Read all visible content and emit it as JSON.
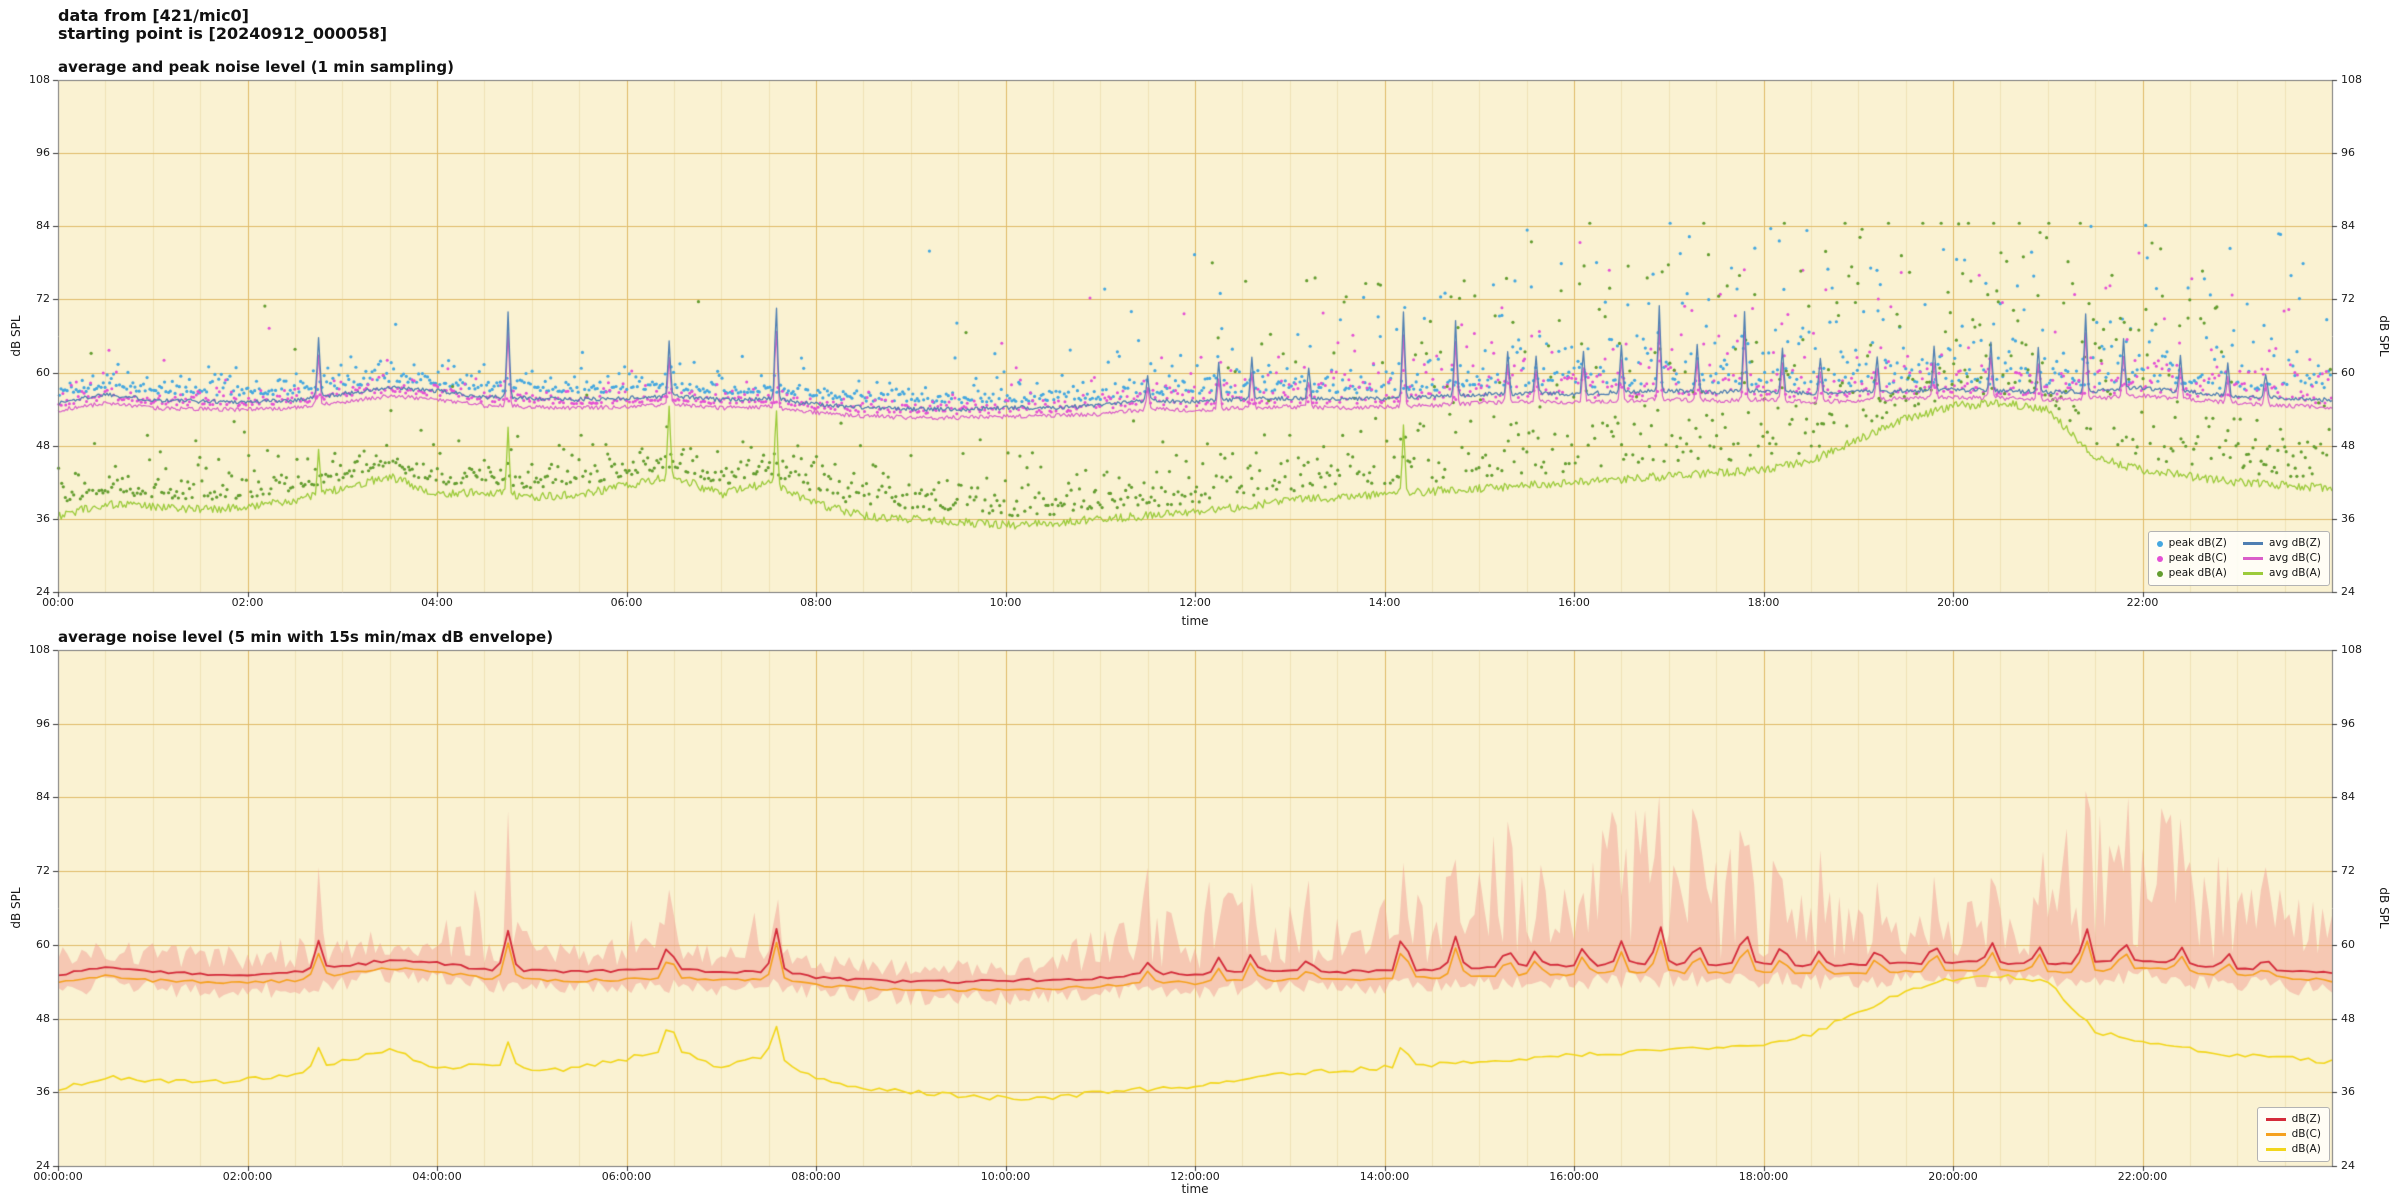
{
  "page": {
    "header_line1": "data from [421/mic0]",
    "header_line2": "starting point is [20240912_000058]",
    "plot_bg": "#faf2d2",
    "grid_major": "#e0bb68",
    "grid_minor": "#f0e2b6",
    "frame_color": "#777777",
    "tick_color": "#333333"
  },
  "chart_data": [
    {
      "type": "line+scatter",
      "title": "average and peak noise level (1 min sampling)",
      "xlabel": "time",
      "ylabel": "dB SPL",
      "ylim": [
        24,
        108
      ],
      "yticks": [
        24,
        36,
        48,
        60,
        72,
        84,
        96,
        108
      ],
      "xlim_hours": [
        0,
        24
      ],
      "xtick_hours": [
        0,
        2,
        4,
        6,
        8,
        10,
        12,
        14,
        16,
        18,
        20,
        22
      ],
      "xtick_labels": [
        "00:00",
        "02:00",
        "04:00",
        "06:00",
        "08:00",
        "10:00",
        "12:00",
        "14:00",
        "16:00",
        "18:00",
        "20:00",
        "22:00"
      ],
      "anchor_step_hours": 0.5,
      "line_step": 0.0166667,
      "spike_width": 0.02,
      "seed": 1337,
      "spikes": {
        "zc": [
          [
            2.75,
            10
          ],
          [
            4.75,
            14
          ],
          [
            6.45,
            9
          ],
          [
            7.58,
            15
          ],
          [
            11.5,
            4
          ],
          [
            12.25,
            6
          ],
          [
            12.6,
            7
          ],
          [
            13.2,
            5
          ],
          [
            14.2,
            14
          ],
          [
            14.75,
            12
          ],
          [
            15.3,
            7
          ],
          [
            15.6,
            6
          ],
          [
            16.1,
            7
          ],
          [
            16.5,
            8
          ],
          [
            16.9,
            14
          ],
          [
            17.3,
            8
          ],
          [
            17.8,
            13
          ],
          [
            18.2,
            7
          ],
          [
            18.6,
            6
          ],
          [
            19.2,
            6
          ],
          [
            19.8,
            7
          ],
          [
            20.4,
            8
          ],
          [
            20.9,
            7
          ],
          [
            21.4,
            13
          ],
          [
            21.8,
            8
          ],
          [
            22.4,
            6
          ],
          [
            22.9,
            5
          ],
          [
            23.3,
            4
          ]
        ],
        "a": [
          [
            2.75,
            8
          ],
          [
            4.75,
            11
          ],
          [
            6.45,
            12
          ],
          [
            7.58,
            13
          ],
          [
            14.2,
            11
          ]
        ]
      },
      "series": [
        {
          "name": "avg dB(Z)",
          "color": "#4f7fb2",
          "width": 1.3,
          "jitter": 0.35,
          "spikes": "zc",
          "spike_scale": 1.0,
          "anchors": [
            55.0,
            56.5,
            55.5,
            55.3,
            55.2,
            55.5,
            56.5,
            57.5,
            57.0,
            56.0,
            55.8,
            55.6,
            55.8,
            56.2,
            55.5,
            55.8,
            54.8,
            54.3,
            54.0,
            54.0,
            54.2,
            54.3,
            54.6,
            55.5,
            55.2,
            55.6,
            55.8,
            55.6,
            55.8,
            56.0,
            56.4,
            56.6,
            56.5,
            56.8,
            57.0,
            56.8,
            57.0,
            56.6,
            56.8,
            57.0,
            57.2,
            57.0,
            56.8,
            57.0,
            57.5,
            56.8,
            56.2,
            55.8,
            55.5
          ]
        },
        {
          "name": "avg dB(C)",
          "color": "#da5ec9",
          "width": 1.2,
          "jitter": 0.35,
          "spikes": "zc",
          "spike_scale": 0.85,
          "anchors": [
            53.8,
            55.0,
            54.2,
            54.0,
            53.9,
            54.2,
            55.2,
            56.2,
            55.6,
            54.6,
            54.4,
            54.2,
            54.4,
            54.8,
            54.2,
            54.4,
            53.4,
            52.9,
            52.6,
            52.6,
            52.8,
            52.9,
            53.2,
            54.0,
            53.8,
            54.2,
            54.4,
            54.2,
            54.4,
            54.6,
            55.0,
            55.2,
            55.1,
            55.4,
            55.6,
            55.4,
            55.6,
            55.2,
            55.4,
            55.8,
            56.0,
            55.8,
            55.6,
            55.8,
            56.2,
            55.6,
            55.0,
            54.6,
            54.2
          ]
        },
        {
          "name": "avg dB(A)",
          "color": "#9ccb3b",
          "width": 1.3,
          "jitter": 0.7,
          "spikes": "a",
          "spike_scale": 1.0,
          "anchors": [
            36.5,
            38.5,
            38.0,
            37.5,
            38.0,
            39.0,
            41.0,
            43.0,
            40.0,
            40.5,
            39.5,
            40.0,
            41.5,
            43.0,
            40.0,
            42.0,
            38.5,
            36.5,
            36.0,
            35.5,
            35.0,
            35.2,
            36.0,
            36.5,
            37.0,
            38.0,
            39.0,
            39.5,
            40.0,
            40.5,
            41.0,
            41.5,
            42.0,
            42.5,
            43.0,
            43.5,
            44.0,
            45.5,
            49.0,
            52.5,
            54.5,
            55.0,
            54.0,
            46.0,
            44.0,
            43.0,
            42.0,
            41.5,
            41.0
          ]
        }
      ],
      "scatter": [
        {
          "name": "peak dB(Z)",
          "color": "#44a7e0",
          "ref": 0,
          "radius": 1.6,
          "base_offset": 1.0,
          "tail_k": [
            [
              0,
              1.2
            ],
            [
              11,
              2.2
            ],
            [
              14,
              3.2
            ]
          ],
          "extra_prob": [
            [
              0,
              0.008
            ],
            [
              11,
              0.06
            ],
            [
              14,
              0.12
            ]
          ],
          "extra_amp": [
            6,
            24
          ]
        },
        {
          "name": "peak dB(C)",
          "color": "#e44fd5",
          "ref": 1,
          "radius": 1.5,
          "base_offset": 0.6,
          "tail_k": [
            [
              0,
              1.0
            ],
            [
              11,
              1.8
            ],
            [
              14,
              2.6
            ]
          ],
          "extra_prob": [
            [
              0,
              0.006
            ],
            [
              11,
              0.04
            ],
            [
              14,
              0.08
            ]
          ],
          "extra_amp": [
            5,
            20
          ]
        },
        {
          "name": "peak dB(A)",
          "color": "#639d2f",
          "ref": 2,
          "radius": 1.6,
          "base_offset": 1.5,
          "tail_k": [
            [
              0,
              2.0
            ],
            [
              8,
              3.0
            ],
            [
              12,
              5.0
            ],
            [
              14,
              7.0
            ],
            [
              23,
              4.0
            ]
          ],
          "extra_prob": [
            [
              0,
              0.01
            ],
            [
              12,
              0.18
            ],
            [
              14,
              0.25
            ],
            [
              23,
              0.08
            ]
          ],
          "extra_amp": [
            12,
            30
          ]
        }
      ],
      "legend_position": "lower right"
    },
    {
      "type": "line+envelope",
      "title": "average noise level (5 min with 15s min/max dB envelope)",
      "xlabel": "time",
      "ylabel": "dB SPL",
      "ylim": [
        24,
        108
      ],
      "yticks": [
        24,
        36,
        48,
        60,
        72,
        84,
        96,
        108
      ],
      "xlim_hours": [
        0,
        24
      ],
      "xtick_hours": [
        0,
        2,
        4,
        6,
        8,
        10,
        12,
        14,
        16,
        18,
        20,
        22
      ],
      "xtick_labels": [
        "00:00:00",
        "02:00:00",
        "04:00:00",
        "06:00:00",
        "08:00:00",
        "10:00:00",
        "12:00:00",
        "14:00:00",
        "16:00:00",
        "18:00:00",
        "20:00:00",
        "22:00:00"
      ],
      "anchor_step_hours": 0.5,
      "line_step": 0.0833333,
      "spike_width": 0.06,
      "seed": 4242,
      "spikes": {
        "zc": [
          [
            2.75,
            10
          ],
          [
            4.75,
            14
          ],
          [
            6.45,
            9
          ],
          [
            7.58,
            15
          ],
          [
            11.5,
            4
          ],
          [
            12.25,
            6
          ],
          [
            12.6,
            7
          ],
          [
            13.2,
            5
          ],
          [
            14.2,
            14
          ],
          [
            14.75,
            12
          ],
          [
            15.3,
            7
          ],
          [
            15.6,
            6
          ],
          [
            16.1,
            7
          ],
          [
            16.5,
            8
          ],
          [
            16.9,
            14
          ],
          [
            17.3,
            8
          ],
          [
            17.8,
            13
          ],
          [
            18.2,
            7
          ],
          [
            18.6,
            6
          ],
          [
            19.2,
            6
          ],
          [
            19.8,
            7
          ],
          [
            20.4,
            8
          ],
          [
            20.9,
            7
          ],
          [
            21.4,
            13
          ],
          [
            21.8,
            8
          ],
          [
            22.4,
            6
          ],
          [
            22.9,
            5
          ],
          [
            23.3,
            4
          ]
        ],
        "a": [
          [
            2.75,
            8
          ],
          [
            4.75,
            11
          ],
          [
            6.45,
            12
          ],
          [
            7.58,
            13
          ],
          [
            14.2,
            11
          ]
        ]
      },
      "envelope": {
        "color": "rgba(242,158,148,0.5)",
        "exponent": 1.3,
        "vol_anchors": [
          4,
          4,
          4,
          4,
          4,
          6,
          5,
          5,
          5,
          14,
          5,
          5,
          8,
          9,
          4,
          14,
          3,
          3,
          3,
          3,
          3,
          4,
          8,
          14,
          16,
          12,
          10,
          8,
          14,
          12,
          20,
          22,
          24,
          26,
          26,
          24,
          22,
          14,
          10,
          8,
          10,
          12,
          20,
          26,
          26,
          24,
          16,
          12,
          10
        ]
      },
      "series": [
        {
          "name": "dB(Z)",
          "color": "#d42b3a",
          "width": 1.8,
          "jitter": 0.25,
          "spikes": "zc",
          "spike_scale": 0.45,
          "anchors": [
            55.0,
            56.5,
            55.5,
            55.3,
            55.2,
            55.5,
            56.5,
            57.5,
            57.0,
            56.0,
            55.8,
            55.6,
            55.8,
            56.2,
            55.5,
            55.8,
            54.8,
            54.3,
            54.0,
            54.0,
            54.2,
            54.3,
            54.6,
            55.5,
            55.2,
            55.6,
            55.8,
            55.6,
            55.8,
            56.0,
            56.4,
            56.6,
            56.5,
            56.8,
            57.0,
            56.8,
            57.0,
            56.6,
            56.8,
            57.0,
            57.2,
            57.0,
            56.8,
            57.0,
            57.5,
            56.8,
            56.2,
            55.8,
            55.5
          ]
        },
        {
          "name": "dB(C)",
          "color": "#f5a11e",
          "width": 1.6,
          "jitter": 0.25,
          "spikes": "zc",
          "spike_scale": 0.4,
          "anchors": [
            53.8,
            55.0,
            54.2,
            54.0,
            53.9,
            54.2,
            55.2,
            56.2,
            55.6,
            54.6,
            54.4,
            54.2,
            54.4,
            54.8,
            54.2,
            54.4,
            53.4,
            52.9,
            52.6,
            52.6,
            52.8,
            52.9,
            53.2,
            54.0,
            53.8,
            54.2,
            54.4,
            54.2,
            54.4,
            54.6,
            55.0,
            55.2,
            55.1,
            55.4,
            55.6,
            55.4,
            55.6,
            55.2,
            55.4,
            55.8,
            56.0,
            55.8,
            55.6,
            55.8,
            56.2,
            55.6,
            55.0,
            54.6,
            54.2
          ]
        },
        {
          "name": "dB(A)",
          "color": "#f2d61b",
          "width": 1.6,
          "jitter": 0.4,
          "spikes": "a",
          "spike_scale": 0.4,
          "anchors": [
            36.5,
            38.5,
            38.0,
            37.5,
            38.0,
            39.0,
            41.0,
            43.0,
            40.0,
            40.5,
            39.5,
            40.0,
            41.5,
            43.0,
            40.0,
            42.0,
            38.5,
            36.5,
            36.0,
            35.5,
            35.0,
            35.2,
            36.0,
            36.5,
            37.0,
            38.0,
            39.0,
            39.5,
            40.0,
            40.5,
            41.0,
            41.5,
            42.0,
            42.5,
            43.0,
            43.5,
            44.0,
            45.5,
            49.0,
            52.5,
            54.5,
            55.0,
            54.0,
            46.0,
            44.0,
            43.0,
            42.0,
            41.5,
            41.0
          ]
        }
      ],
      "legend_position": "lower right"
    }
  ]
}
